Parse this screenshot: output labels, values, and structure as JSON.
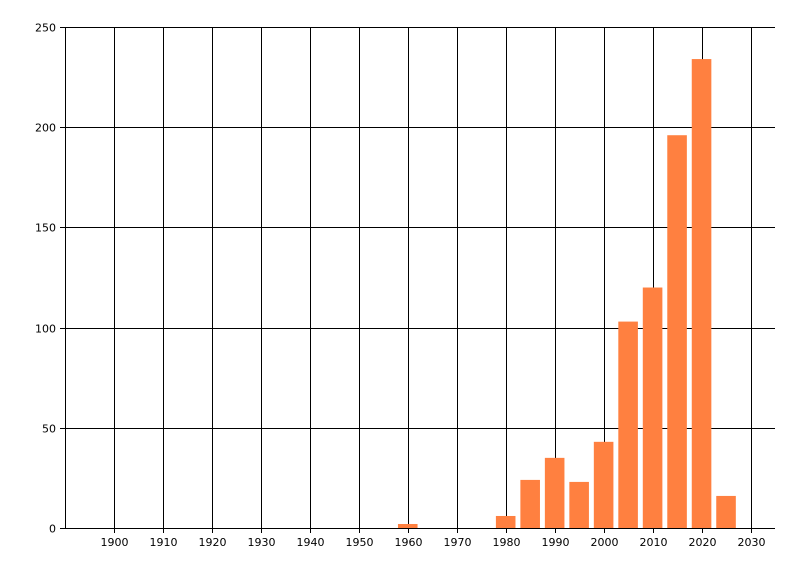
{
  "chart_data": {
    "type": "bar",
    "title": "",
    "xlabel": "",
    "ylabel": "",
    "x": [
      1960,
      1980,
      1985,
      1990,
      1995,
      2000,
      2005,
      2010,
      2015,
      2020,
      2025
    ],
    "values": [
      2,
      6,
      24,
      35,
      23,
      43,
      103,
      120,
      196,
      234,
      16
    ],
    "bar_width_years": 4,
    "xlim": [
      1890,
      2035
    ],
    "ylim": [
      0,
      250
    ],
    "x_ticks": [
      1900,
      1910,
      1920,
      1930,
      1940,
      1950,
      1960,
      1970,
      1980,
      1990,
      2000,
      2010,
      2020,
      2030
    ],
    "y_ticks": [
      0,
      50,
      100,
      150,
      200,
      250
    ],
    "grid": true,
    "bar_color": "#ff8040",
    "grid_color": "#000000"
  }
}
